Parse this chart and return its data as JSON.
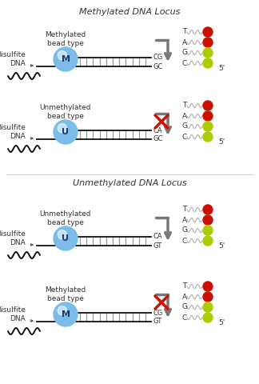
{
  "title_methylated": "Methylated DNA Locus",
  "title_unmethylated": "Unmethylated DNA Locus",
  "bg_color": "#ffffff",
  "bead_M_color": "#7bbde8",
  "bead_U_color": "#7bbde8",
  "bead_M_label": "M",
  "bead_U_label": "U",
  "red_bead_color": "#cc1100",
  "green_bead_color": "#aacc00",
  "arrow_color": "#777777",
  "cross_color": "#cc1100",
  "line_color": "#111111",
  "tick_color": "#999999",
  "label_color": "#333333",
  "nucleotides": [
    "T",
    "A",
    "G",
    "C"
  ],
  "separator_color": "#cccccc",
  "title_fontsize": 8,
  "label_fontsize": 6.5,
  "bead_label_fontsize": 8
}
